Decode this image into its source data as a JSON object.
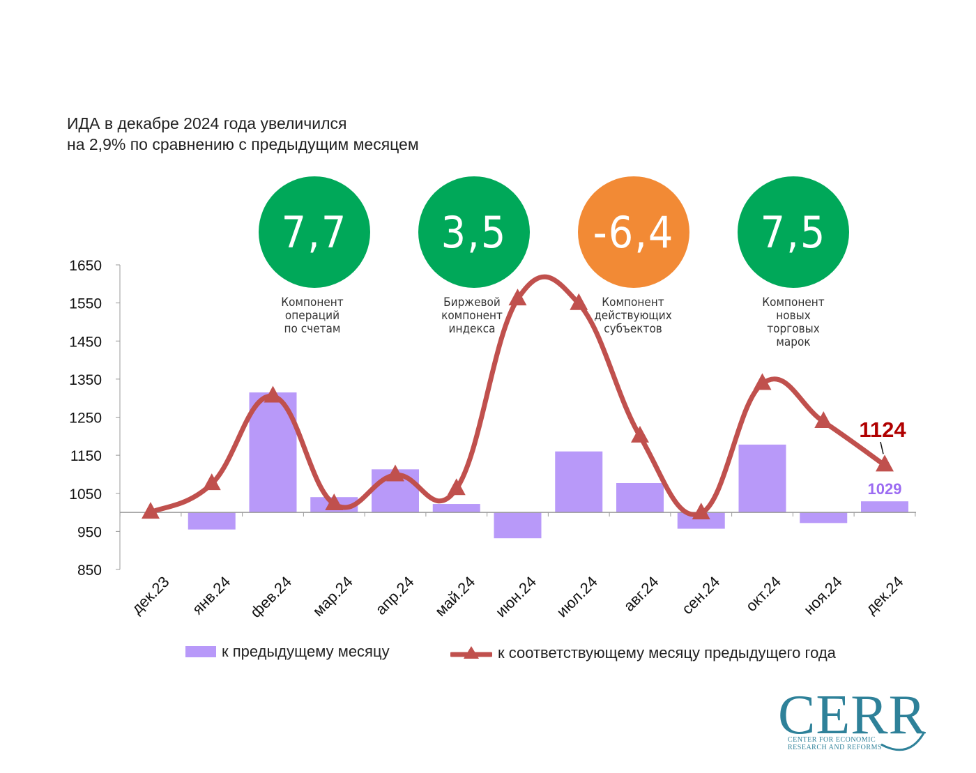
{
  "title": {
    "line1": "ИДА в декабре 2024 года увеличился",
    "line2": "на 2,9% по сравнению с предыдущим месяцем"
  },
  "components": [
    {
      "value": "7,7",
      "color": "#00a859",
      "label_lines": [
        "Компонент",
        "операций",
        "по счетам"
      ]
    },
    {
      "value": "3,5",
      "color": "#00a859",
      "label_lines": [
        "Биржевой",
        "компонент",
        "индекса"
      ]
    },
    {
      "value": "-6,4",
      "color": "#f28a35",
      "label_lines": [
        "Компонент",
        "действующих",
        "субъектов"
      ]
    },
    {
      "value": "7,5",
      "color": "#00a859",
      "label_lines": [
        "Компонент",
        "новых",
        "торговых",
        "марок"
      ]
    }
  ],
  "chart_data": {
    "type": "bar+line",
    "categories": [
      "дек.23",
      "янв.24",
      "фев.24",
      "мар.24",
      "апр.24",
      "май.24",
      "июн.24",
      "июл.24",
      "авг.24",
      "сен.24",
      "окт.24",
      "ноя.24",
      "дек.24"
    ],
    "yticks": [
      "1650",
      "1550",
      "1450",
      "1350",
      "1250",
      "1150",
      "1050",
      "950",
      "850"
    ],
    "ylim": [
      850,
      1650
    ],
    "baseline": 1000,
    "series": [
      {
        "name": "к предыдущему месяцу",
        "type": "bar",
        "color": "#b899f9",
        "values": [
          null,
          955,
          1315,
          1040,
          1113,
          1022,
          932,
          1160,
          1077,
          957,
          1178,
          972,
          1029
        ]
      },
      {
        "name": "к соответствующему месяцу предыдущего года",
        "type": "line",
        "color": "#c0504d",
        "values": [
          1000,
          1075,
          1305,
          1022,
          1098,
          1062,
          1560,
          1548,
          1200,
          998,
          1338,
          1238,
          1124
        ]
      }
    ],
    "annotations": {
      "line_last": "1124",
      "bar_last": "1029"
    },
    "annotation_colors": {
      "line_last": "#b00000",
      "bar_last": "#9b6bf2"
    }
  },
  "legend": {
    "bar_label": "к предыдущему месяцу",
    "line_label": "к соответствующему месяцу предыдущего года"
  },
  "logo": {
    "word": "CERR",
    "line1": "CENTER FOR ECONOMIC",
    "line2": "RESEARCH AND REFORMS"
  }
}
